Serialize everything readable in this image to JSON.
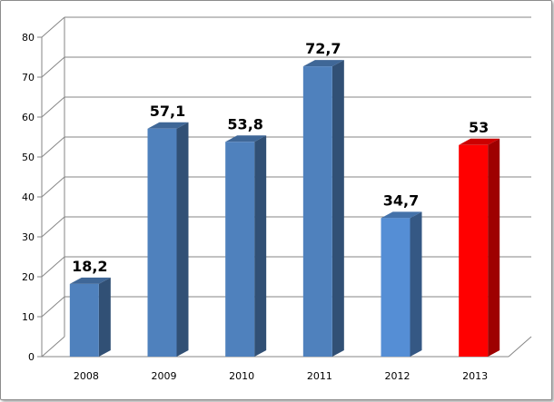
{
  "chart_data": {
    "type": "bar",
    "title": "",
    "xlabel": "",
    "ylabel": "",
    "categories": [
      "2008",
      "2009",
      "2010",
      "2011",
      "2012",
      "2013"
    ],
    "values": [
      18.2,
      57.1,
      53.8,
      72.7,
      34.7,
      53
    ],
    "data_labels": [
      "18,2",
      "57,1",
      "53,8",
      "72,7",
      "34,7",
      "53"
    ],
    "ylim": [
      0,
      80
    ],
    "yticks": [
      "0",
      "10",
      "20",
      "30",
      "40",
      "50",
      "60",
      "70",
      "80"
    ],
    "grid": true,
    "legend": "none",
    "style": "3d-column",
    "bar_colors": [
      "#4f81bd",
      "#4f81bd",
      "#4f81bd",
      "#4f81bd",
      "#558ed5",
      "#ff0000"
    ]
  }
}
